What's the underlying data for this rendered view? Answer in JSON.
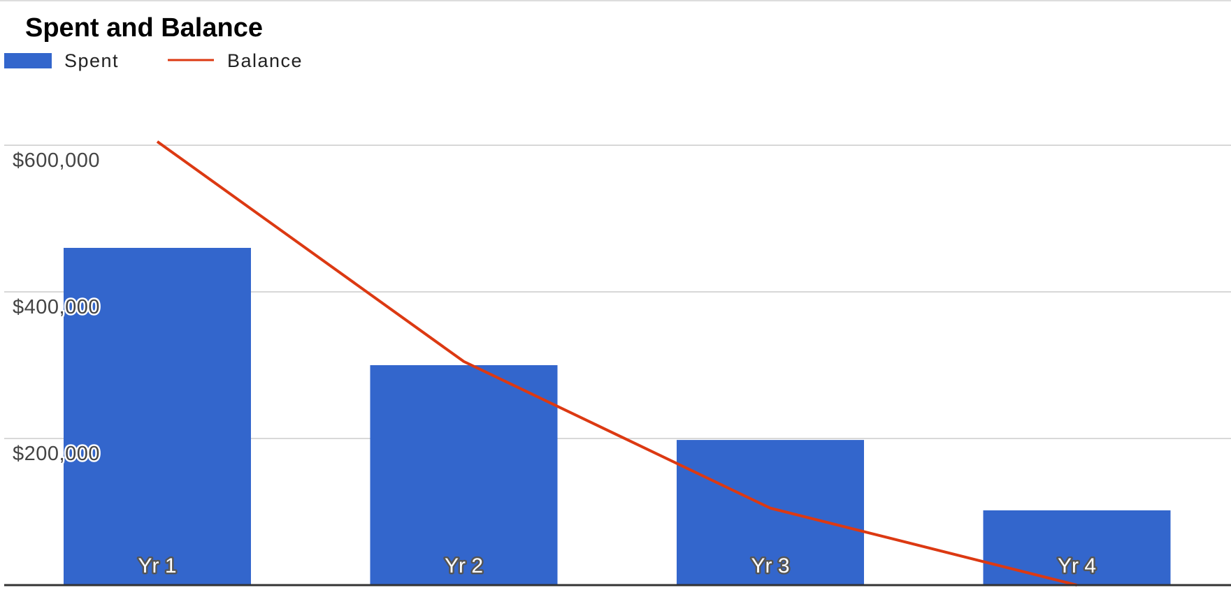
{
  "chart_data": {
    "type": "bar",
    "title": "Spent and Balance",
    "categories": [
      "Yr 1",
      "Yr 2",
      "Yr 3",
      "Yr 4"
    ],
    "series": [
      {
        "name": "Spent",
        "kind": "bar",
        "values": [
          460000,
          300000,
          198000,
          102000
        ]
      },
      {
        "name": "Balance",
        "kind": "line",
        "values": [
          605000,
          305000,
          105000,
          0
        ]
      }
    ],
    "yticks": [
      {
        "value": 200000,
        "label": "$200,000"
      },
      {
        "value": 400000,
        "label": "$400,000"
      },
      {
        "value": 600000,
        "label": "$600,000"
      }
    ],
    "ylim": [
      0,
      800000
    ],
    "xlabel": "",
    "ylabel": "",
    "grid": true,
    "legend": "top-left",
    "colors": {
      "Spent": "#3366cc",
      "Balance": "#dc3912",
      "grid": "#cccccc",
      "axis": "#333333"
    }
  }
}
